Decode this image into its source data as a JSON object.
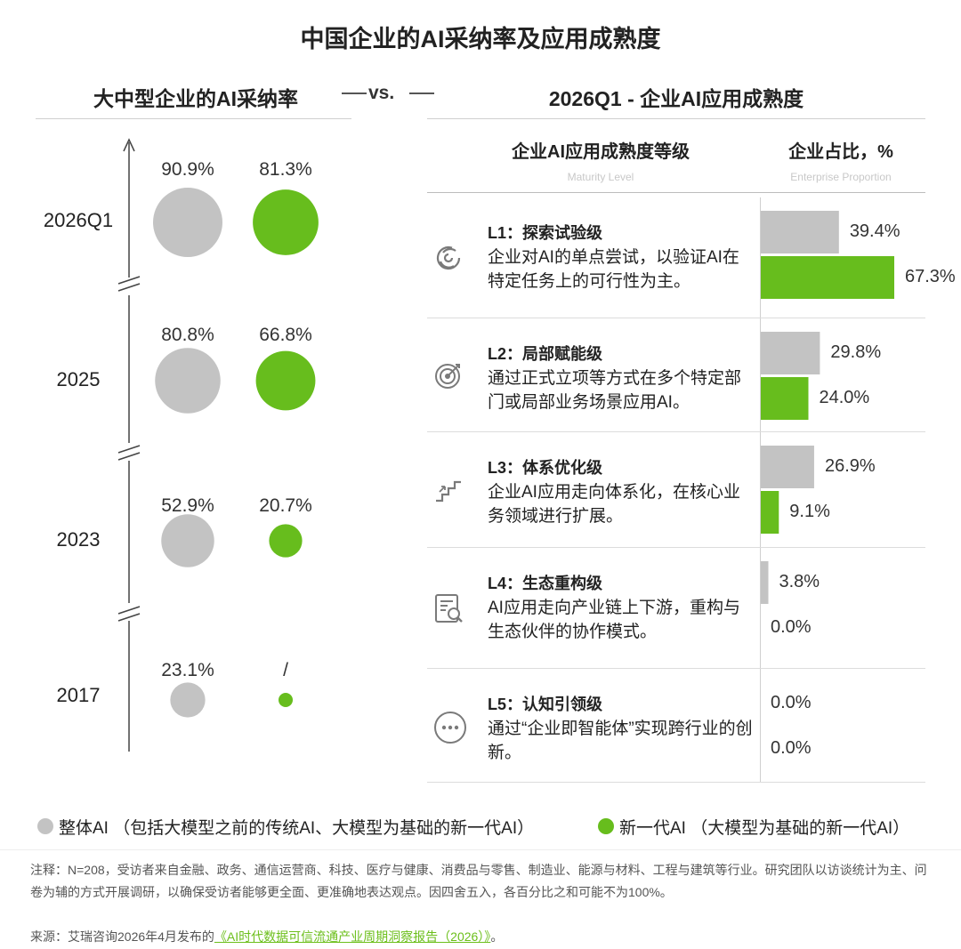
{
  "title": "中国企业的AI采纳率及应用成熟度",
  "left_header": "大中型企业的AI采纳率",
  "vs_label": "vs.",
  "right_header": "2026Q1 - 企业AI应用成熟度",
  "colors": {
    "overall": "#c3c3c3",
    "new_gen": "#67bd1d",
    "accent_text": "#6cbf1b"
  },
  "chart_data": [
    {
      "type": "scatter",
      "title": "大中型企业的AI采纳率",
      "categories": [
        "2026Q1",
        "2025",
        "2023",
        "2017"
      ],
      "series": [
        {
          "name": "整体AI",
          "values": [
            90.9,
            80.8,
            52.9,
            23.1
          ],
          "labels": [
            "90.9%",
            "80.8%",
            "52.9%",
            "23.1%"
          ]
        },
        {
          "name": "新一代AI",
          "values": [
            81.3,
            66.8,
            20.7,
            null
          ],
          "labels": [
            "81.3%",
            "66.8%",
            "20.7%",
            "/"
          ]
        }
      ]
    },
    {
      "type": "bar",
      "title": "2026Q1 - 企业AI应用成熟度",
      "col_level": "企业AI应用成熟度等级",
      "col_level_en": "Maturity Level",
      "col_value": "企业占比，%",
      "col_value_en": "Enterprise Proportion",
      "categories": [
        "L1：探索试验级",
        "L2：局部赋能级",
        "L3：体系优化级",
        "L4：生态重构级",
        "L5：认知引领级"
      ],
      "descriptions": [
        "企业对AI的单点尝试，以验证AI在特定任务上的可行性为主。",
        "通过正式立项等方式在多个特定部门或局部业务场景应用AI。",
        "企业AI应用走向体系化，在核心业务领域进行扩展。",
        "AI应用走向产业链上下游，重构与生态伙伴的协作模式。",
        "通过“企业即智能体”实现跨行业的创新。"
      ],
      "icons": [
        "swirl-icon",
        "target-icon",
        "stairs-icon",
        "report-icon",
        "chat-icon"
      ],
      "series": [
        {
          "name": "整体AI",
          "values": [
            39.4,
            29.8,
            26.9,
            3.8,
            0.0
          ],
          "labels": [
            "39.4%",
            "29.8%",
            "26.9%",
            "3.8%",
            "0.0%"
          ]
        },
        {
          "name": "新一代AI",
          "values": [
            67.3,
            24.0,
            9.1,
            0.0,
            0.0
          ],
          "labels": [
            "67.3%",
            "24.0%",
            "9.1%",
            "0.0%",
            "0.0%"
          ]
        }
      ]
    }
  ],
  "legend": {
    "overall": "整体AI （包括大模型之前的传统AI、大模型为基础的新一代AI）",
    "new_gen": "新一代AI （大模型为基础的新一代AI）"
  },
  "note": "注释：N=208，受访者来自金融、政务、通信运营商、科技、医疗与健康、消费品与零售、制造业、能源与材料、工程与建筑等行业。研究团队以访谈统计为主、问卷为辅的方式开展调研，以确保受访者能够更全面、更准确地表达观点。因四舍五入，各百分比之和可能不为100%。",
  "source_prefix": "来源：艾瑞咨询2026年4月发布的",
  "source_link": "《AI时代数据可信流通产业周期洞察报告（2026）》",
  "source_suffix": "。"
}
